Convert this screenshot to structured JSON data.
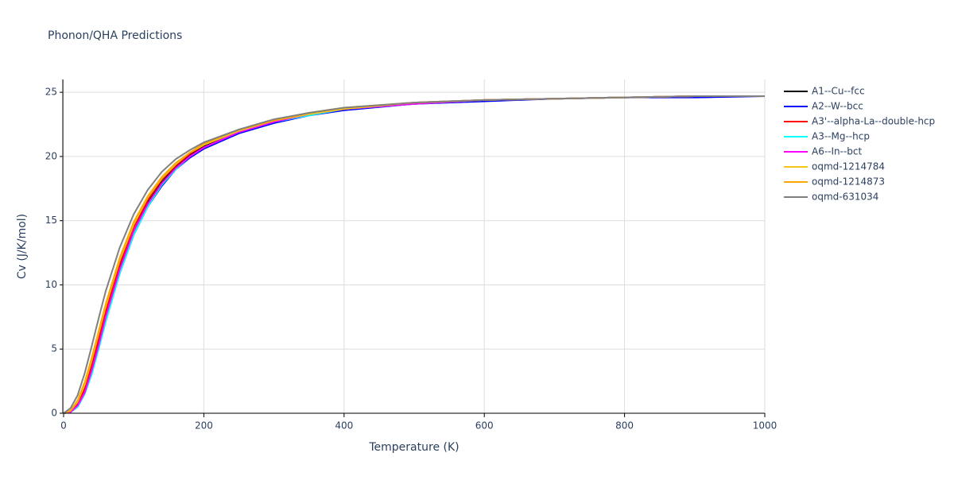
{
  "chart_data": {
    "type": "line",
    "title": "Phonon/QHA Predictions",
    "x_label": "Temperature (K)",
    "y_label": "Cv (J/K/mol)",
    "x": [
      0,
      10,
      20,
      30,
      40,
      50,
      60,
      80,
      100,
      120,
      140,
      160,
      180,
      200,
      250,
      300,
      350,
      400,
      500,
      600,
      700,
      800,
      900,
      1000
    ],
    "series": [
      {
        "name": "A1--Cu--fcc",
        "color": "#000000",
        "values": [
          0,
          0.1,
          0.6,
          1.7,
          3.4,
          5.5,
          7.6,
          11.3,
          14.2,
          16.4,
          18.0,
          19.2,
          20.1,
          20.8,
          21.9,
          22.7,
          23.3,
          23.7,
          24.1,
          24.4,
          24.5,
          24.6,
          24.7,
          24.7
        ]
      },
      {
        "name": "A2--W--bcc",
        "color": "#0000ff",
        "values": [
          0,
          0.1,
          0.5,
          1.5,
          3.1,
          5.1,
          7.2,
          10.9,
          13.9,
          16.1,
          17.7,
          19.0,
          19.9,
          20.6,
          21.8,
          22.6,
          23.2,
          23.6,
          24.1,
          24.3,
          24.5,
          24.6,
          24.6,
          24.7
        ]
      },
      {
        "name": "A3'--alpha-La--double-hcp",
        "color": "#ff0000",
        "values": [
          0,
          0.1,
          0.7,
          1.9,
          3.7,
          5.8,
          7.9,
          11.6,
          14.5,
          16.6,
          18.2,
          19.3,
          20.2,
          20.9,
          22.0,
          22.8,
          23.3,
          23.7,
          24.2,
          24.4,
          24.5,
          24.6,
          24.7,
          24.7
        ]
      },
      {
        "name": "A3--Mg--hcp",
        "color": "#00ffff",
        "values": [
          0,
          0.1,
          0.5,
          1.5,
          3.0,
          5.0,
          7.1,
          10.9,
          13.9,
          16.1,
          17.8,
          19.0,
          20.0,
          20.7,
          21.9,
          22.7,
          23.2,
          23.7,
          24.1,
          24.4,
          24.5,
          24.6,
          24.7,
          24.7
        ]
      },
      {
        "name": "A6--In--bct",
        "color": "#ff00ff",
        "values": [
          0,
          0.1,
          0.6,
          1.6,
          3.3,
          5.3,
          7.5,
          11.2,
          14.2,
          16.3,
          17.9,
          19.1,
          20.0,
          20.7,
          21.9,
          22.7,
          23.3,
          23.7,
          24.1,
          24.4,
          24.5,
          24.6,
          24.7,
          24.7
        ]
      },
      {
        "name": "oqmd-1214784",
        "color": "#f5c518",
        "values": [
          0,
          0.2,
          0.9,
          2.2,
          4.1,
          6.2,
          8.3,
          11.9,
          14.7,
          16.8,
          18.3,
          19.4,
          20.3,
          20.9,
          22.0,
          22.8,
          23.3,
          23.7,
          24.2,
          24.4,
          24.5,
          24.6,
          24.7,
          24.7
        ]
      },
      {
        "name": "oqmd-1214873",
        "color": "#ffa500",
        "values": [
          0,
          0.2,
          1.0,
          2.4,
          4.3,
          6.4,
          8.5,
          12.1,
          14.9,
          16.9,
          18.4,
          19.5,
          20.3,
          21.0,
          22.1,
          22.8,
          23.4,
          23.8,
          24.2,
          24.4,
          24.5,
          24.6,
          24.7,
          24.7
        ]
      },
      {
        "name": "oqmd-631034",
        "color": "#808080",
        "values": [
          0,
          0.4,
          1.4,
          3.1,
          5.2,
          7.4,
          9.5,
          12.9,
          15.5,
          17.4,
          18.8,
          19.8,
          20.5,
          21.1,
          22.1,
          22.9,
          23.4,
          23.8,
          24.2,
          24.4,
          24.5,
          24.6,
          24.7,
          24.7
        ]
      }
    ],
    "xlim": [
      0,
      1000
    ],
    "xticks": [
      0,
      200,
      400,
      600,
      800,
      1000
    ],
    "ylim": [
      0,
      26
    ],
    "yticks": [
      0,
      5,
      10,
      15,
      20,
      25
    ],
    "grid": true
  }
}
